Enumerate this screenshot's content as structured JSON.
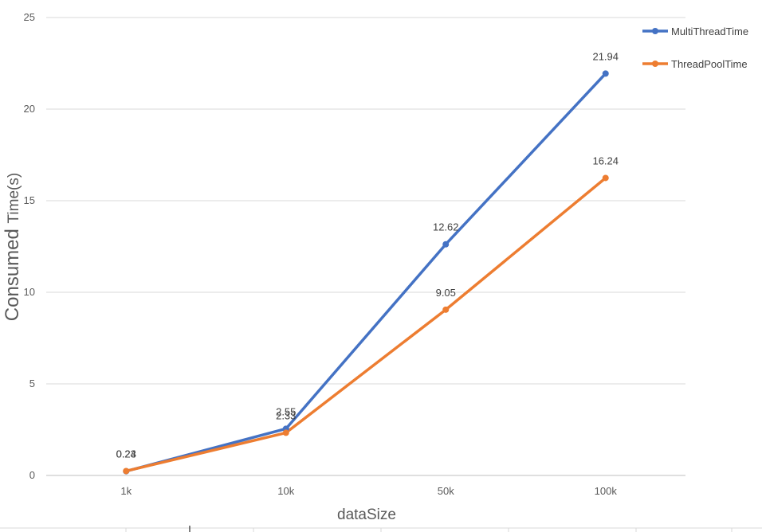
{
  "chart_data": {
    "type": "line",
    "categories": [
      "1k",
      "10k",
      "50k",
      "100k"
    ],
    "series": [
      {
        "name": "MultiThreadTime",
        "values": [
          0.23,
          2.55,
          12.62,
          21.94
        ],
        "labels": [
          "0.23",
          "2.55",
          "12.62",
          "21.94"
        ],
        "color": "#4472C4"
      },
      {
        "name": "ThreadPoolTime",
        "values": [
          0.24,
          2.33,
          9.05,
          16.24
        ],
        "labels": [
          "0.24",
          "2.33",
          "9.05",
          "16.24"
        ],
        "color": "#ED7D31"
      }
    ],
    "yticks": [
      "0",
      "5",
      "10",
      "15",
      "20",
      "25"
    ],
    "ylim": [
      0,
      25
    ],
    "xlabel": "dataSize",
    "ylabel_main": "Consumed ",
    "ylabel_small": "Time(s)",
    "grid": true,
    "legend_position": "top-right"
  }
}
